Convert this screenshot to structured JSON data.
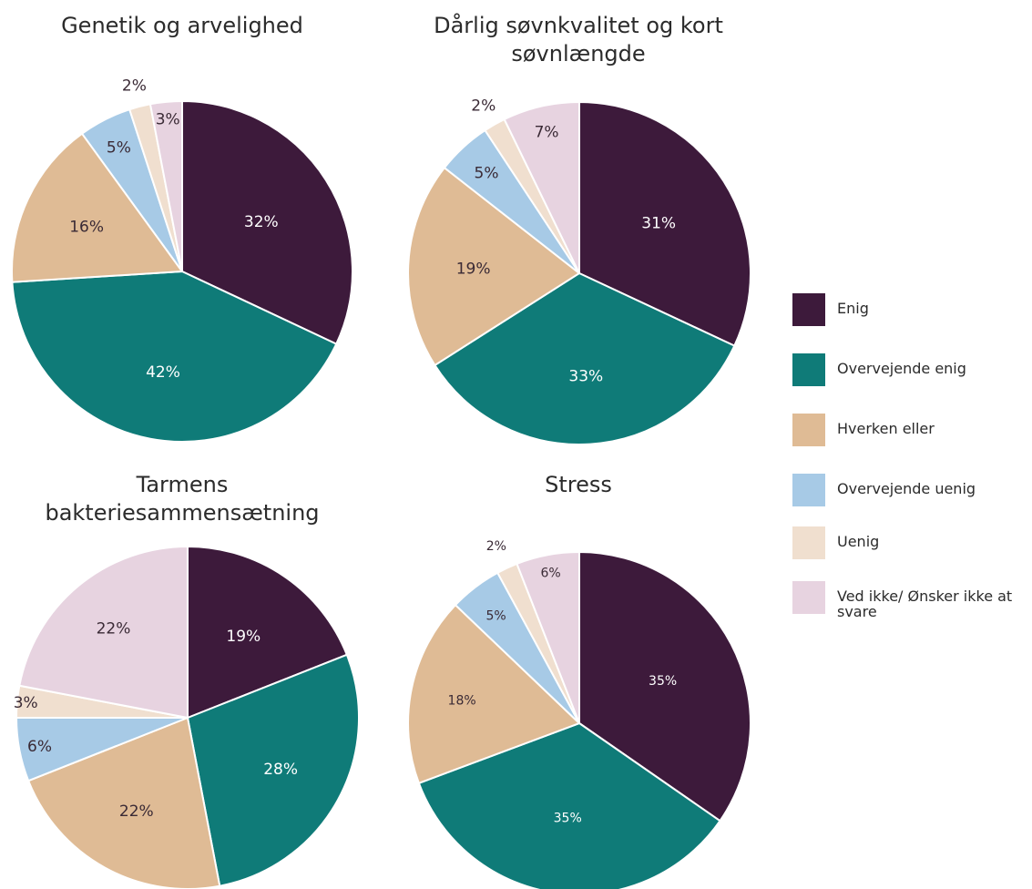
{
  "colors": {
    "Enig": "#3d1a3b",
    "Overvejende enig": "#0f7b78",
    "Hverken eller": "#dfbb95",
    "Overvejende uenig": "#a7cae6",
    "Uenig": "#f0dfcf",
    "Ved ikke/ Ønsker ikke at svare": "#e7d3e0"
  },
  "legend": {
    "items": [
      {
        "label": "Enig",
        "color": "#3d1a3b"
      },
      {
        "label": "Overvejende enig",
        "color": "#0f7b78"
      },
      {
        "label": "Hverken eller",
        "color": "#dfbb95"
      },
      {
        "label": "Overvejende uenig",
        "color": "#a7cae6"
      },
      {
        "label": "Uenig",
        "color": "#f0dfcf"
      },
      {
        "label": "Ved ikke/ Ønsker ikke at svare",
        "color": "#e7d3e0"
      }
    ]
  },
  "chart_data": [
    {
      "type": "pie",
      "title": "Genetik og arvelighed",
      "labels": [
        "Enig",
        "Overvejende enig",
        "Hverken eller",
        "Overvejende uenig",
        "Uenig",
        "Ved ikke/ Ønsker ikke at svare"
      ],
      "values": [
        32,
        42,
        16,
        5,
        2,
        3
      ],
      "value_labels": [
        "32%",
        "42%",
        "16%",
        "5%",
        "2%",
        "3%"
      ]
    },
    {
      "type": "pie",
      "title": "Dårlig søvnkvalitet og kort søvnlængde",
      "labels": [
        "Enig",
        "Overvejende enig",
        "Hverken eller",
        "Overvejende uenig",
        "Uenig",
        "Ved ikke/ Ønsker ikke at svare"
      ],
      "values": [
        31,
        33,
        19,
        5,
        2,
        7
      ],
      "value_labels": [
        "31%",
        "33%",
        "19%",
        "5%",
        "2%",
        "7%"
      ]
    },
    {
      "type": "pie",
      "title": "Tarmens bakteriesammensætning",
      "labels": [
        "Enig",
        "Overvejende enig",
        "Hverken eller",
        "Overvejende uenig",
        "Uenig",
        "Ved ikke/ Ønsker ikke at svare"
      ],
      "values": [
        19,
        28,
        22,
        6,
        3,
        22
      ],
      "value_labels": [
        "19%",
        "28%",
        "22%",
        "6%",
        "3%",
        "22%"
      ]
    },
    {
      "type": "pie",
      "title": "Stress",
      "labels": [
        "Enig",
        "Overvejende enig",
        "Hverken eller",
        "Overvejende uenig",
        "Uenig",
        "Ved ikke/ Ønsker ikke at svare"
      ],
      "values": [
        35,
        35,
        18,
        5,
        2,
        6
      ],
      "value_labels": [
        "35%",
        "35%",
        "18%",
        "5%",
        "2%",
        "6%"
      ]
    }
  ]
}
